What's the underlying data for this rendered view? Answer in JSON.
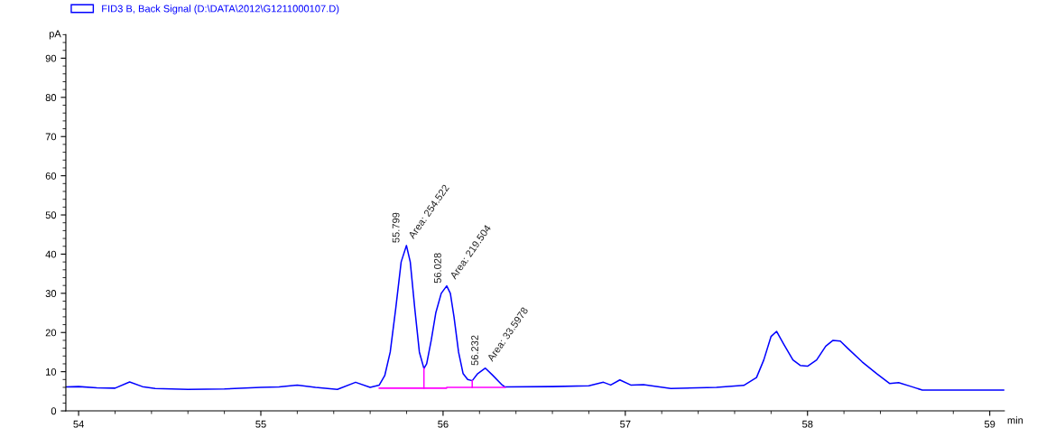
{
  "chart_data": {
    "type": "line",
    "ylabel": "pA",
    "xlabel": "min",
    "xlim": [
      53.93,
      59.08
    ],
    "xticks": [
      54,
      55,
      56,
      57,
      58,
      59
    ],
    "ylim": [
      0,
      96
    ],
    "yticks": [
      0,
      10,
      20,
      30,
      40,
      50,
      60,
      70,
      80,
      90
    ],
    "grid": false,
    "legend": "top left",
    "marker": "none",
    "line_style": "solid",
    "series": [
      {
        "name": "FID3 B, Back Signal (D:\\DATA\\2012\\G1211000107.D)",
        "color": "#0000ff",
        "x": [
          53.93,
          54.0,
          54.1,
          54.2,
          54.28,
          54.35,
          54.42,
          54.6,
          54.8,
          55.0,
          55.1,
          55.2,
          55.3,
          55.42,
          55.52,
          55.6,
          55.65,
          55.68,
          55.71,
          55.74,
          55.77,
          55.799,
          55.82,
          55.845,
          55.87,
          55.895,
          55.91,
          55.935,
          55.96,
          55.99,
          56.02,
          56.04,
          56.06,
          56.085,
          56.11,
          56.135,
          56.16,
          56.19,
          56.232,
          56.27,
          56.32,
          56.34,
          56.6,
          56.8,
          56.88,
          56.92,
          56.97,
          57.03,
          57.1,
          57.25,
          57.5,
          57.65,
          57.72,
          57.76,
          57.8,
          57.83,
          57.87,
          57.92,
          57.96,
          58.0,
          58.05,
          58.1,
          58.14,
          58.18,
          58.22,
          58.3,
          58.38,
          58.45,
          58.5,
          58.57,
          58.63,
          59.08
        ],
        "values": [
          6.1,
          6.2,
          5.9,
          5.8,
          7.4,
          6.2,
          5.7,
          5.5,
          5.6,
          6.0,
          6.1,
          6.6,
          6.0,
          5.5,
          7.3,
          6.0,
          6.6,
          9,
          15,
          26,
          38,
          42.2,
          38,
          26,
          15,
          10.8,
          12,
          18,
          25,
          30,
          31.9,
          30,
          24,
          15,
          9.5,
          8.0,
          7.7,
          9.5,
          10.9,
          9.2,
          6.8,
          6.1,
          6.2,
          6.4,
          7.3,
          6.6,
          7.9,
          6.6,
          6.7,
          5.7,
          6.0,
          6.5,
          8.5,
          13,
          19,
          20.3,
          17,
          13,
          11.6,
          11.4,
          13,
          16.5,
          18,
          17.8,
          16,
          12.5,
          9.5,
          7.0,
          7.2,
          6.2,
          5.3,
          5.3
        ]
      },
      {
        "color": "#ff00ff",
        "x": [
          55.65,
          56.02,
          56.02,
          56.34
        ],
        "values": [
          5.8,
          5.8,
          6.0,
          6.0
        ]
      },
      {
        "color": "#ff00ff",
        "x": [
          55.895,
          55.895
        ],
        "values": [
          5.8,
          10.8
        ]
      },
      {
        "color": "#ff00ff",
        "x": [
          56.16,
          56.16
        ],
        "values": [
          6.0,
          7.7
        ]
      }
    ],
    "annotations": [
      {
        "text": "55.799",
        "x": 55.799,
        "y": 42.2
      },
      {
        "text": "Area: 254.522",
        "x": 55.799,
        "y": 42.2
      },
      {
        "text": "56.028",
        "x": 56.028,
        "y": 31.9
      },
      {
        "text": "Area: 219.504",
        "x": 56.028,
        "y": 31.9
      },
      {
        "text": "56.232",
        "x": 56.232,
        "y": 10.9
      },
      {
        "text": "Area: 33.5978",
        "x": 56.232,
        "y": 10.9
      }
    ]
  }
}
